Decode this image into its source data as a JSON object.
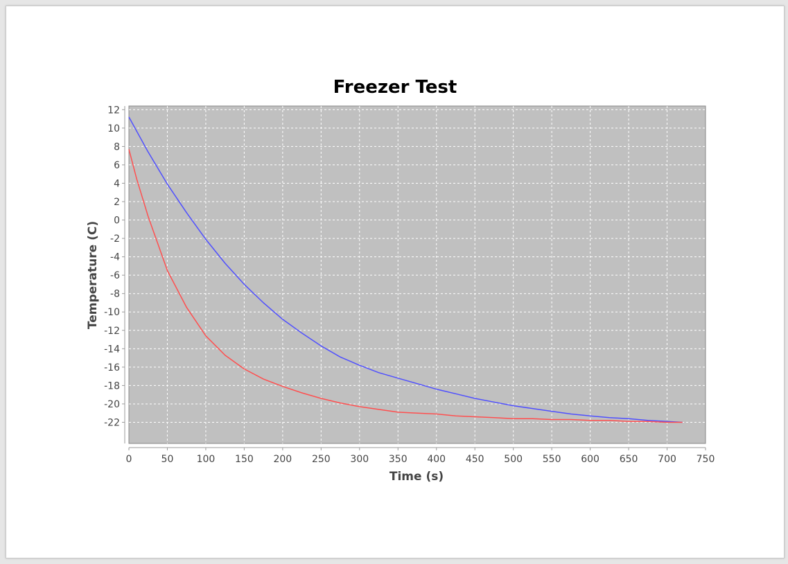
{
  "colors": {
    "plot_background": "#c0c0c0",
    "grid": "#ffffff",
    "series_blue": "#4f4fff",
    "series_red": "#ff4f4f"
  },
  "chart_data": {
    "type": "line",
    "title": "Freezer Test",
    "xlabel": "Time (s)",
    "ylabel": "Temperature (C)",
    "xlim": [
      0,
      750
    ],
    "ylim": [
      -24.3,
      12.4
    ],
    "xticks": [
      0,
      50,
      100,
      150,
      200,
      250,
      300,
      350,
      400,
      450,
      500,
      550,
      600,
      650,
      700,
      750
    ],
    "yticks": [
      12,
      10,
      8,
      6,
      4,
      2,
      0,
      -2,
      -4,
      -6,
      -8,
      -10,
      -12,
      -14,
      -16,
      -18,
      -20,
      -22
    ],
    "grid": true,
    "legend": "none",
    "series": [
      {
        "color": "#4f4fff",
        "x": [
          0,
          25,
          50,
          75,
          100,
          125,
          150,
          175,
          200,
          225,
          250,
          275,
          300,
          325,
          350,
          375,
          400,
          425,
          450,
          475,
          500,
          525,
          550,
          575,
          600,
          625,
          650,
          675,
          700,
          720
        ],
        "y": [
          11.2,
          7.4,
          3.9,
          0.8,
          -2.1,
          -4.7,
          -7.0,
          -9.0,
          -10.8,
          -12.3,
          -13.7,
          -14.9,
          -15.8,
          -16.6,
          -17.2,
          -17.8,
          -18.4,
          -18.9,
          -19.4,
          -19.8,
          -20.2,
          -20.5,
          -20.8,
          -21.1,
          -21.3,
          -21.5,
          -21.6,
          -21.8,
          -21.9,
          -22.0
        ]
      },
      {
        "color": "#ff4f4f",
        "x": [
          0,
          10,
          25,
          50,
          75,
          100,
          125,
          150,
          175,
          200,
          225,
          250,
          275,
          300,
          325,
          350,
          375,
          400,
          425,
          450,
          475,
          500,
          525,
          550,
          575,
          600,
          625,
          650,
          675,
          700,
          720
        ],
        "y": [
          7.7,
          4.5,
          0.4,
          -5.5,
          -9.5,
          -12.6,
          -14.7,
          -16.2,
          -17.3,
          -18.1,
          -18.8,
          -19.4,
          -19.9,
          -20.3,
          -20.6,
          -20.9,
          -21.0,
          -21.1,
          -21.3,
          -21.4,
          -21.5,
          -21.6,
          -21.6,
          -21.7,
          -21.7,
          -21.8,
          -21.8,
          -21.9,
          -21.9,
          -22.0,
          -22.0
        ]
      }
    ]
  }
}
